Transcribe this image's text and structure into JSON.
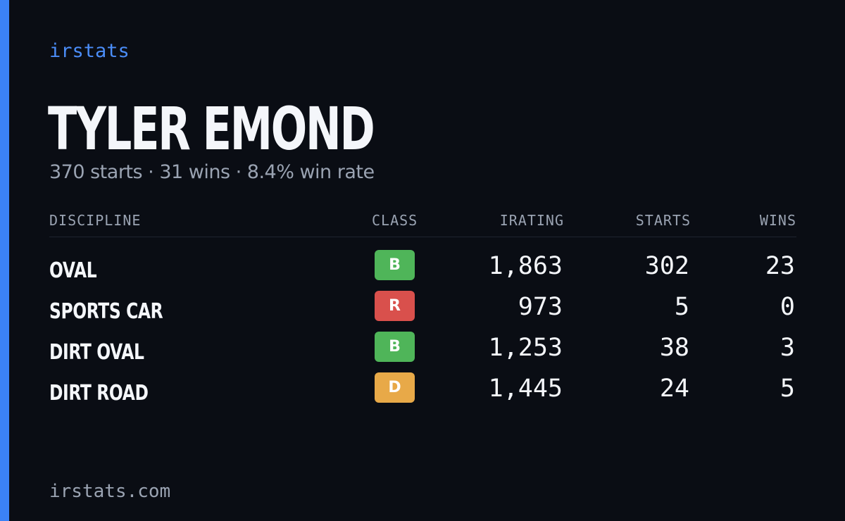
{
  "brand": "irstats",
  "driver": {
    "name": "TYLER EMOND",
    "summary": {
      "starts": "370 starts",
      "wins": "31 wins",
      "win_rate": "8.4% win rate",
      "separator": " · "
    }
  },
  "table": {
    "headers": {
      "discipline": "DISCIPLINE",
      "class": "CLASS",
      "irating": "IRATING",
      "starts": "STARTS",
      "wins": "WINS"
    },
    "rows": [
      {
        "discipline": "OVAL",
        "class": "B",
        "class_color": "#4fb559",
        "irating": "1,863",
        "starts": "302",
        "wins": "23"
      },
      {
        "discipline": "SPORTS CAR",
        "class": "R",
        "class_color": "#d9504c",
        "irating": "973",
        "starts": "5",
        "wins": "0"
      },
      {
        "discipline": "DIRT OVAL",
        "class": "B",
        "class_color": "#4fb559",
        "irating": "1,253",
        "starts": "38",
        "wins": "3"
      },
      {
        "discipline": "DIRT ROAD",
        "class": "D",
        "class_color": "#e8a948",
        "irating": "1,445",
        "starts": "24",
        "wins": "5"
      }
    ]
  },
  "footer": "irstats.com",
  "colors": {
    "accent": "#3b82f6",
    "background": "#0a0d14",
    "muted_text": "#9aa3b2"
  }
}
